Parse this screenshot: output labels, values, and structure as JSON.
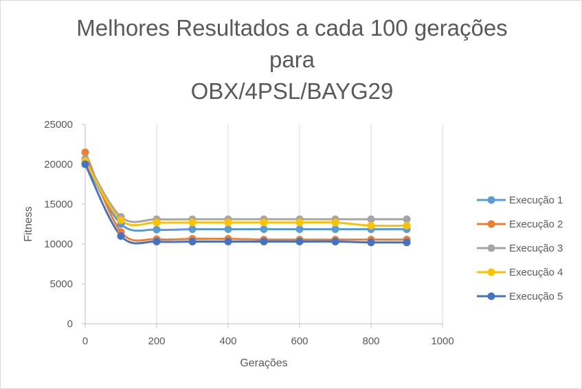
{
  "chart_data": {
    "type": "line",
    "title_lines": [
      "Melhores Resultados a cada 100 gerações",
      "para",
      "OBX/4PSL/BAYG29"
    ],
    "xlabel": "Gerações",
    "ylabel": "Fitness",
    "xlim": [
      0,
      1000
    ],
    "ylim": [
      0,
      25000
    ],
    "xticks": [
      "0",
      "200",
      "400",
      "600",
      "800",
      "1000"
    ],
    "yticks": [
      "0",
      "5000",
      "10000",
      "15000",
      "20000",
      "25000"
    ],
    "grid": "vertical",
    "legend_position": "right",
    "smooth": true,
    "x": [
      0,
      100,
      200,
      300,
      400,
      500,
      600,
      700,
      800,
      900
    ],
    "series": [
      {
        "name": "Execução 1",
        "color": "#5b9bd5",
        "values": [
          20300,
          12500,
          11800,
          11850,
          11850,
          11850,
          11850,
          11850,
          11850,
          11850
        ]
      },
      {
        "name": "Execução 2",
        "color": "#ed7d31",
        "values": [
          21500,
          11500,
          10600,
          10650,
          10650,
          10550,
          10550,
          10550,
          10550,
          10550
        ]
      },
      {
        "name": "Execução 3",
        "color": "#a5a5a5",
        "values": [
          20700,
          13400,
          13100,
          13100,
          13100,
          13100,
          13100,
          13100,
          13100,
          13100
        ]
      },
      {
        "name": "Execução 4",
        "color": "#ffc000",
        "values": [
          20400,
          13000,
          12700,
          12700,
          12700,
          12700,
          12700,
          12700,
          12300,
          12300
        ]
      },
      {
        "name": "Execução 5",
        "color": "#4472c4",
        "values": [
          20000,
          11000,
          10300,
          10300,
          10300,
          10300,
          10300,
          10300,
          10200,
          10200
        ]
      }
    ]
  }
}
